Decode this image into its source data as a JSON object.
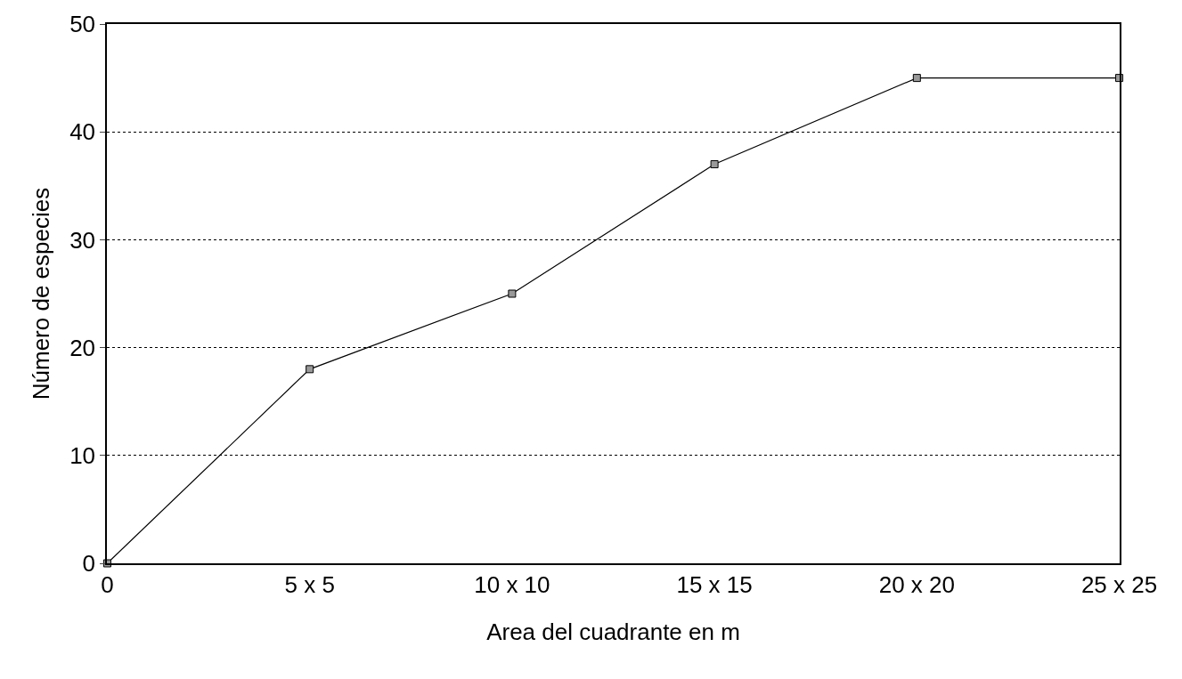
{
  "chart_data": {
    "type": "line",
    "xlabel": "Area del cuadrante en m",
    "ylabel": "Número de especies",
    "categories": [
      "0",
      "5 x 5",
      "10 x 10",
      "15 x 15",
      "20 x 20",
      "25 x 25"
    ],
    "series": [
      {
        "color": "#000000",
        "values": [
          0,
          18,
          25,
          37,
          45,
          45
        ]
      }
    ],
    "ylim": [
      0,
      50
    ],
    "yticks": [
      0,
      10,
      20,
      30,
      40,
      50
    ],
    "grid": "y",
    "marker": "square",
    "line_style": "solid",
    "legend": false
  }
}
